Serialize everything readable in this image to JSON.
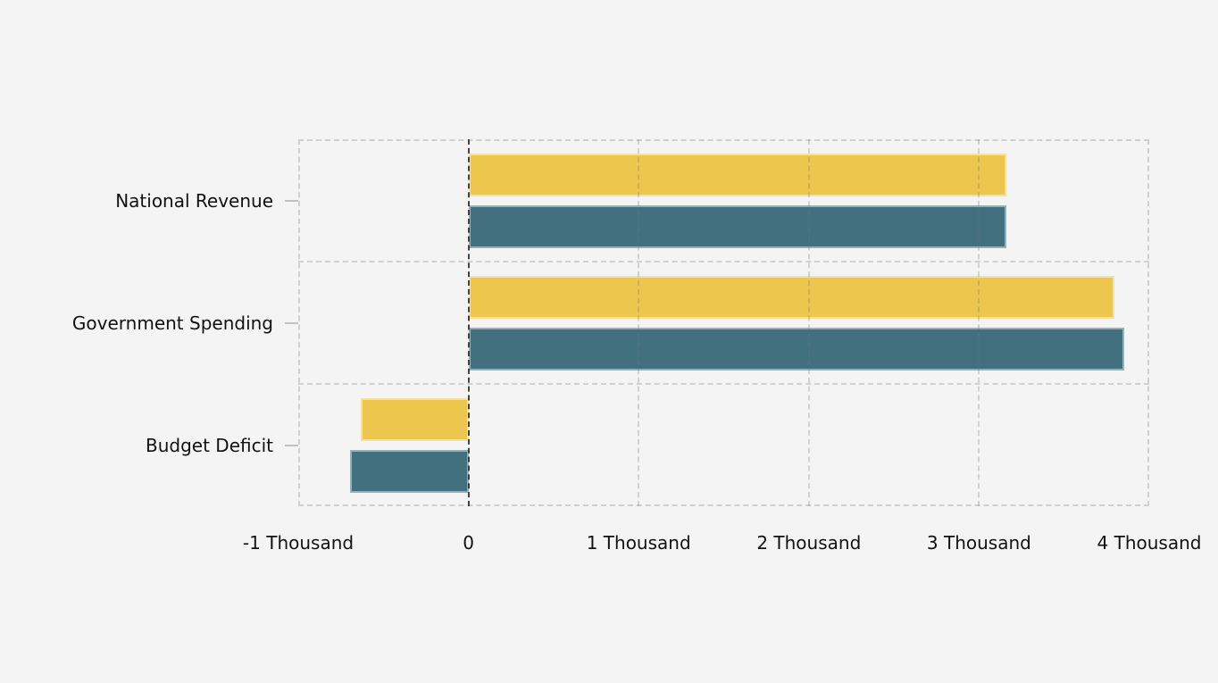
{
  "chart_data": {
    "type": "bar",
    "orientation": "horizontal",
    "title": "",
    "xlabel": "",
    "ylabel": "",
    "categories": [
      "National Revenue",
      "Government Spending",
      "Budget Deficit"
    ],
    "series": [
      {
        "name": "yellow",
        "color": "#EDC64D",
        "values": [
          3160,
          3795,
          -635
        ]
      },
      {
        "name": "teal",
        "color": "#42707E",
        "values": [
          3160,
          3855,
          -695
        ]
      }
    ],
    "xlim": [
      -1000,
      4000
    ],
    "xticks": [
      {
        "value": -1000,
        "label": "-1 Thousand"
      },
      {
        "value": 0,
        "label": "0"
      },
      {
        "value": 1000,
        "label": "1 Thousand"
      },
      {
        "value": 2000,
        "label": "2 Thousand"
      },
      {
        "value": 3000,
        "label": "3 Thousand"
      },
      {
        "value": 4000,
        "label": "4 Thousand"
      }
    ],
    "grid": "dashed",
    "legend": "none",
    "colors": {
      "background": "#F4F4F4",
      "grid_line": "#CFCFCF",
      "zero_line": "#3E3E3E",
      "plot_border": "#C8C8C8",
      "text": "#111111"
    }
  }
}
